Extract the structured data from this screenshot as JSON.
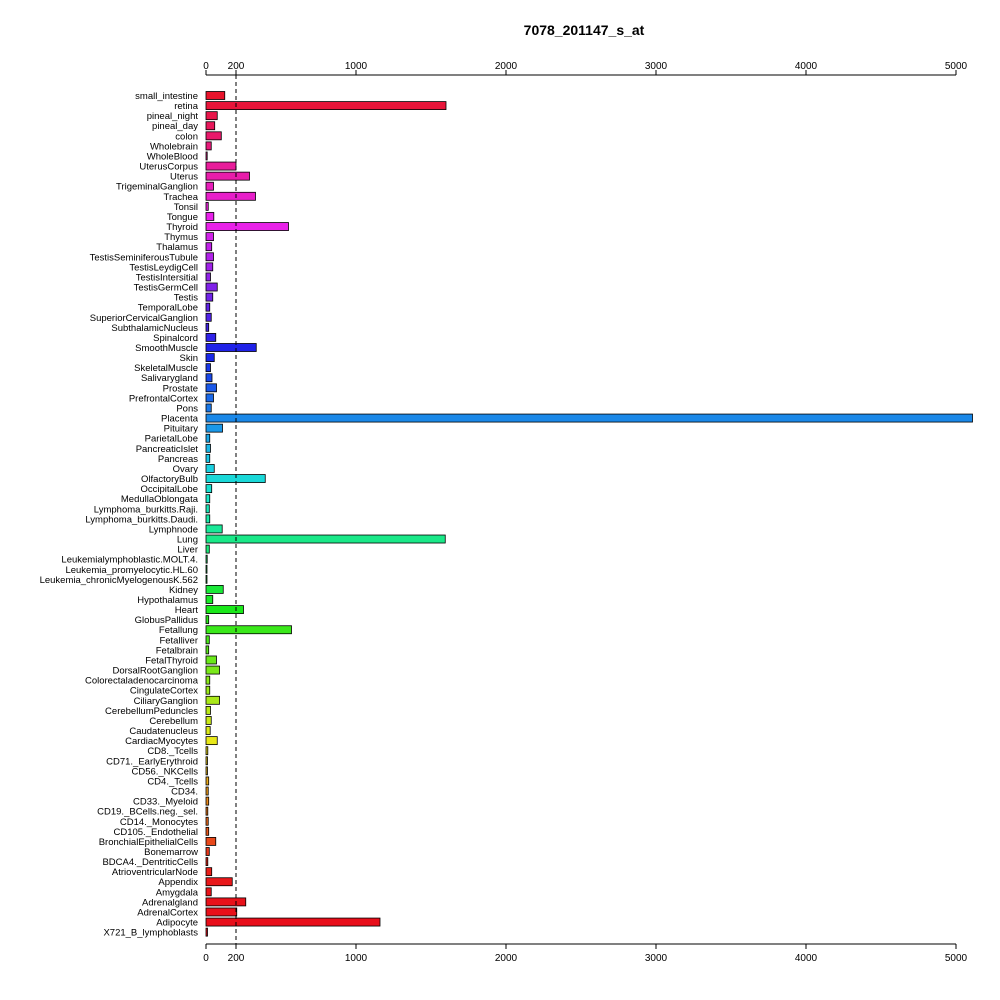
{
  "chart_data": {
    "type": "bar",
    "orientation": "horizontal",
    "title": "7078_201147_s_at",
    "xlabel": "",
    "ylabel": "",
    "xlim": [
      0,
      5000
    ],
    "x_ticks": [
      0,
      200,
      1000,
      2000,
      3000,
      4000,
      5000
    ],
    "reference_line": 200,
    "reference_line_style": "dashed",
    "axes": "top and bottom",
    "grid": false,
    "legend": "none",
    "categories": [
      "small_intestine",
      "retina",
      "pineal_night",
      "pineal_day",
      "colon",
      "Wholebrain",
      "WholeBlood",
      "UterusCorpus",
      "Uterus",
      "TrigeminalGanglion",
      "Trachea",
      "Tonsil",
      "Tongue",
      "Thyroid",
      "Thymus",
      "Thalamus",
      "TestisSeminiferousTubule",
      "TestisLeydigCell",
      "TestisIntersitial",
      "TestisGermCell",
      "Testis",
      "TemporalLobe",
      "SuperiorCervicalGanglion",
      "SubthalamicNucleus",
      "Spinalcord",
      "SmoothMuscle",
      "Skin",
      "SkeletalMuscle",
      "Salivarygland",
      "Prostate",
      "PrefrontalCortex",
      "Pons",
      "Placenta",
      "Pituitary",
      "ParietalLobe",
      "PancreaticIslet",
      "Pancreas",
      "Ovary",
      "OlfactoryBulb",
      "OccipitalLobe",
      "MedullaOblongata",
      "Lymphoma_burkitts.Raji.",
      "Lymphoma_burkitts.Daudi.",
      "Lymphnode",
      "Lung",
      "Liver",
      "Leukemialymphoblastic.MOLT.4.",
      "Leukemia_promyelocytic.HL.60",
      "Leukemia_chronicMyelogenousK.562",
      "Kidney",
      "Hypothalamus",
      "Heart",
      "GlobusPallidus",
      "Fetallung",
      "Fetalliver",
      "Fetalbrain",
      "FetalThyroid",
      "DorsalRootGanglion",
      "Colorectaladenocarcinoma",
      "CingulateCortex",
      "CiliaryGanglion",
      "CerebellumPeduncles",
      "Cerebellum",
      "Caudatenucleus",
      "CardiacMyocytes",
      "CD8._Tcells",
      "CD71._EarlyErythroid",
      "CD56._NKCells",
      "CD4._Tcells",
      "CD34.",
      "CD33._Myeloid",
      "CD19._BCells.neg._sel.",
      "CD14._Monocytes",
      "CD105._Endothelial",
      "BronchialEpithelialCells",
      "Bonemarrow",
      "BDCA4._DentriticCells",
      "AtrioventricularNode",
      "Appendix",
      "Amygdala",
      "Adrenalgland",
      "AdrenalCortex",
      "Adipocyte",
      "X721_B_lymphoblasts"
    ],
    "values": [
      125,
      1600,
      75,
      58,
      102,
      35,
      8,
      200,
      290,
      50,
      330,
      15,
      52,
      550,
      50,
      38,
      50,
      45,
      30,
      75,
      45,
      25,
      35,
      18,
      65,
      335,
      55,
      30,
      40,
      70,
      50,
      35,
      5110,
      110,
      25,
      30,
      25,
      55,
      395,
      38,
      25,
      22,
      25,
      108,
      1595,
      22,
      8,
      6,
      6,
      115,
      45,
      250,
      18,
      570,
      22,
      18,
      70,
      90,
      25,
      25,
      90,
      30,
      35,
      28,
      75,
      12,
      10,
      10,
      18,
      15,
      18,
      12,
      15,
      18,
      65,
      22,
      12,
      38,
      175,
      35,
      265,
      205,
      1160,
      10
    ],
    "colors": [
      "#E8132B",
      "#E8153A",
      "#E8164A",
      "#E8175A",
      "#E8196A",
      "#E81A7A",
      "#E81B8A",
      "#E81C9A",
      "#E81DAA",
      "#E81EBA",
      "#E81FCA",
      "#E820DA",
      "#E821EA",
      "#E822E8",
      "#D022E8",
      "#C022E8",
      "#B022E8",
      "#A022E8",
      "#9022E8",
      "#8022E8",
      "#7022E8",
      "#6022E8",
      "#5022E8",
      "#4022E8",
      "#3022E8",
      "#2022E8",
      "#1A28E8",
      "#1A38E8",
      "#1A48E8",
      "#1A58E8",
      "#1A68E8",
      "#1A78E8",
      "#1A88E8",
      "#1A98E8",
      "#1AA8E8",
      "#1AB8E8",
      "#1AC8E8",
      "#1AD0E0",
      "#1AD8D8",
      "#1AE0D0",
      "#1AE8C8",
      "#1AE8B8",
      "#1AE8A8",
      "#1AE898",
      "#1AE888",
      "#1AE878",
      "#1AE868",
      "#1AE858",
      "#1AE848",
      "#1AE838",
      "#1AE828",
      "#1AE81A",
      "#2AE81A",
      "#3AE81A",
      "#4AE81A",
      "#5AE81A",
      "#6AE81A",
      "#7AE81A",
      "#8AE81A",
      "#9AE81A",
      "#AAE81A",
      "#BAE81A",
      "#CAE81A",
      "#DAE81A",
      "#E8E81A",
      "#E8D81A",
      "#E8C81A",
      "#E8B81A",
      "#E8A81A",
      "#E8981A",
      "#E8881A",
      "#E8781A",
      "#E8681A",
      "#E8581A",
      "#E8481A",
      "#E8381A",
      "#E8281A",
      "#E8201A",
      "#E8181A",
      "#E8141A",
      "#E8121A",
      "#E8101A",
      "#E80E1A",
      "#E80C1A"
    ]
  }
}
